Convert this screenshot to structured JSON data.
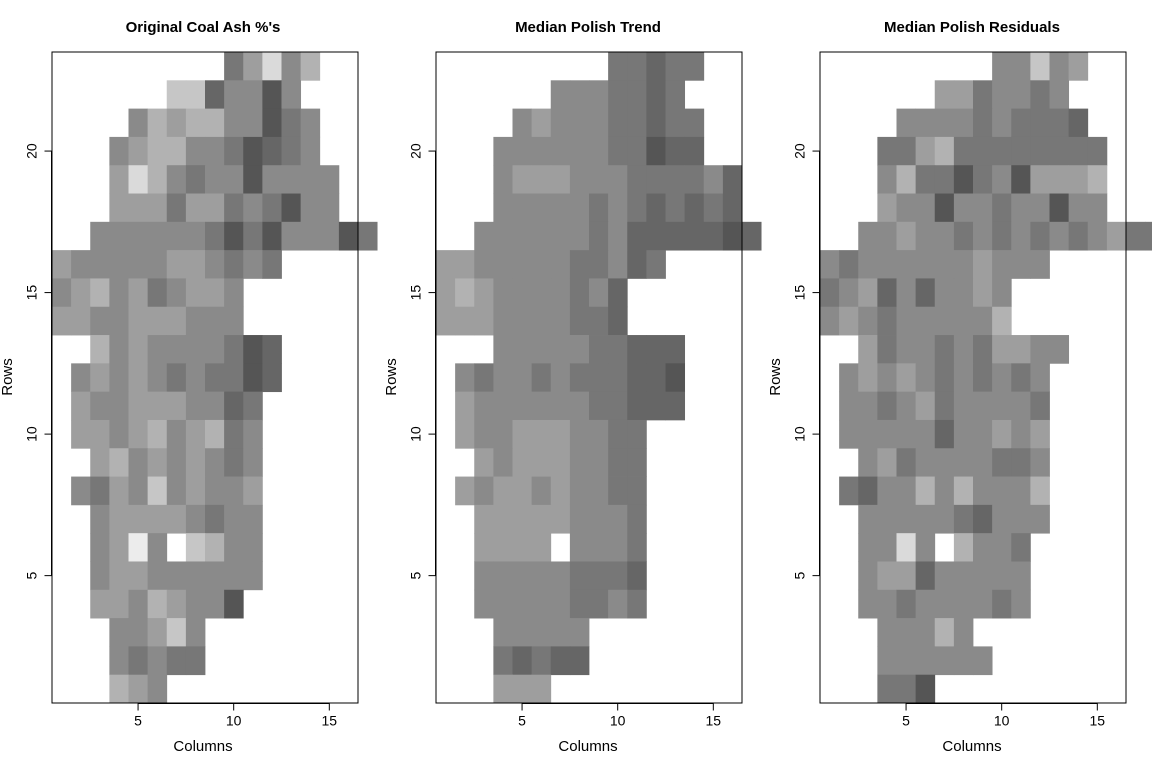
{
  "chart_data": [
    {
      "type": "heatmap",
      "title": "Original Coal Ash %'s",
      "xlabel": "Columns",
      "ylabel": "Rows",
      "xlim": [
        0.5,
        16.5
      ],
      "ylim": [
        0.5,
        23.5
      ],
      "xticks": [
        5,
        10,
        15
      ],
      "yticks": [
        5,
        10,
        15,
        20
      ],
      "color_scale": "grayscale (darker = lower value)",
      "grid": false,
      "rows": [
        {
          "row": 23,
          "start": 10,
          "levels": [
            5,
            7,
            10,
            6,
            8
          ]
        },
        {
          "row": 22,
          "start": 7,
          "levels": [
            9,
            9,
            4,
            6,
            6,
            3,
            6
          ]
        },
        {
          "row": 21,
          "start": 5,
          "levels": [
            6,
            8,
            7,
            8,
            8,
            6,
            6,
            3,
            5,
            6
          ]
        },
        {
          "row": 20,
          "start": 4,
          "levels": [
            6,
            7,
            8,
            8,
            6,
            6,
            5,
            3,
            4,
            5,
            6
          ]
        },
        {
          "row": 19,
          "start": 4,
          "levels": [
            7,
            10,
            8,
            6,
            5,
            6,
            6,
            3,
            6,
            6,
            6,
            6
          ]
        },
        {
          "row": 18,
          "start": 4,
          "levels": [
            7,
            7,
            7,
            5,
            7,
            7,
            5,
            6,
            5,
            3,
            6,
            6
          ]
        },
        {
          "row": 17,
          "start": 3,
          "levels": [
            6,
            6,
            6,
            6,
            6,
            6,
            5,
            3,
            5,
            3,
            6,
            6,
            6,
            3,
            5
          ]
        },
        {
          "row": 16,
          "start": 1,
          "levels": [
            7,
            6,
            6,
            6,
            6,
            6,
            7,
            7,
            6,
            5,
            6,
            5
          ]
        },
        {
          "row": 15,
          "start": 1,
          "levels": [
            6,
            7,
            8,
            6,
            7,
            5,
            6,
            7,
            7,
            6
          ]
        },
        {
          "row": 14,
          "start": 1,
          "levels": [
            7,
            7,
            6,
            6,
            7,
            7,
            7,
            6,
            6,
            6
          ]
        },
        {
          "row": 13,
          "start": 3,
          "levels": [
            8,
            6,
            7,
            6,
            6,
            6,
            6,
            5,
            3,
            4
          ]
        },
        {
          "row": 12,
          "start": 2,
          "levels": [
            6,
            7,
            6,
            7,
            6,
            5,
            6,
            5,
            5,
            3,
            4
          ]
        },
        {
          "row": 11,
          "start": 2,
          "levels": [
            7,
            6,
            6,
            7,
            7,
            7,
            6,
            6,
            4,
            5
          ]
        },
        {
          "row": 10,
          "start": 2,
          "levels": [
            7,
            7,
            6,
            7,
            8,
            6,
            7,
            8,
            5,
            6
          ]
        },
        {
          "row": 9,
          "start": 3,
          "levels": [
            7,
            8,
            6,
            7,
            6,
            7,
            6,
            5,
            6
          ]
        },
        {
          "row": 8,
          "start": 2,
          "levels": [
            6,
            5,
            7,
            6,
            9,
            6,
            7,
            6,
            6,
            7
          ]
        },
        {
          "row": 7,
          "start": 3,
          "levels": [
            6,
            7,
            7,
            7,
            7,
            6,
            5,
            6,
            6
          ]
        },
        {
          "row": 6,
          "start": 3,
          "levels": [
            6,
            7,
            11,
            6,
            null,
            9,
            8,
            6,
            6
          ]
        },
        {
          "row": 5,
          "start": 3,
          "levels": [
            6,
            7,
            7,
            6,
            6,
            6,
            6,
            6,
            6
          ]
        },
        {
          "row": 4,
          "start": 3,
          "levels": [
            7,
            7,
            6,
            8,
            7,
            6,
            6,
            3
          ]
        },
        {
          "row": 3,
          "start": 4,
          "levels": [
            6,
            6,
            7,
            9,
            6
          ]
        },
        {
          "row": 2,
          "start": 4,
          "levels": [
            6,
            5,
            6,
            5,
            5
          ]
        },
        {
          "row": 1,
          "start": 4,
          "levels": [
            8,
            7,
            6
          ]
        }
      ]
    },
    {
      "type": "heatmap",
      "title": "Median Polish Trend",
      "xlabel": "Columns",
      "ylabel": "Rows",
      "xlim": [
        0.5,
        16.5
      ],
      "ylim": [
        0.5,
        23.5
      ],
      "xticks": [
        5,
        10,
        15
      ],
      "yticks": [
        5,
        10,
        15,
        20
      ],
      "color_scale": "grayscale (darker = lower value)",
      "grid": false,
      "rows": [
        {
          "row": 23,
          "start": 10,
          "levels": [
            5,
            5,
            4,
            5,
            5
          ]
        },
        {
          "row": 22,
          "start": 7,
          "levels": [
            6,
            6,
            6,
            5,
            5,
            4,
            5
          ]
        },
        {
          "row": 21,
          "start": 5,
          "levels": [
            6,
            7,
            6,
            6,
            6,
            5,
            5,
            4,
            5,
            5
          ]
        },
        {
          "row": 20,
          "start": 4,
          "levels": [
            6,
            6,
            6,
            6,
            6,
            6,
            5,
            5,
            3,
            4,
            4
          ]
        },
        {
          "row": 19,
          "start": 4,
          "levels": [
            6,
            7,
            7,
            7,
            6,
            6,
            6,
            5,
            5,
            5,
            5,
            6,
            4
          ]
        },
        {
          "row": 18,
          "start": 4,
          "levels": [
            6,
            6,
            6,
            6,
            6,
            5,
            6,
            5,
            4,
            5,
            4,
            5,
            4
          ]
        },
        {
          "row": 17,
          "start": 3,
          "levels": [
            6,
            6,
            6,
            6,
            6,
            6,
            5,
            6,
            4,
            4,
            4,
            4,
            4,
            3,
            4
          ]
        },
        {
          "row": 16,
          "start": 1,
          "levels": [
            7,
            7,
            6,
            6,
            6,
            6,
            6,
            5,
            5,
            6,
            4,
            5
          ]
        },
        {
          "row": 15,
          "start": 1,
          "levels": [
            7,
            8,
            7,
            6,
            6,
            6,
            6,
            5,
            6,
            4
          ]
        },
        {
          "row": 14,
          "start": 1,
          "levels": [
            7,
            7,
            7,
            6,
            6,
            6,
            6,
            5,
            5,
            4
          ]
        },
        {
          "row": 13,
          "start": 4,
          "levels": [
            6,
            6,
            6,
            6,
            6,
            5,
            5,
            4,
            4,
            4
          ]
        },
        {
          "row": 12,
          "start": 2,
          "levels": [
            6,
            5,
            6,
            6,
            5,
            6,
            5,
            5,
            5,
            4,
            4,
            3
          ]
        },
        {
          "row": 11,
          "start": 2,
          "levels": [
            7,
            6,
            6,
            6,
            6,
            6,
            6,
            5,
            5,
            4,
            4,
            4
          ]
        },
        {
          "row": 10,
          "start": 2,
          "levels": [
            7,
            6,
            6,
            7,
            7,
            7,
            6,
            6,
            5,
            5
          ]
        },
        {
          "row": 9,
          "start": 3,
          "levels": [
            7,
            6,
            7,
            7,
            7,
            6,
            6,
            5,
            5
          ]
        },
        {
          "row": 8,
          "start": 2,
          "levels": [
            7,
            6,
            7,
            7,
            6,
            7,
            6,
            6,
            5,
            5
          ]
        },
        {
          "row": 7,
          "start": 3,
          "levels": [
            7,
            7,
            7,
            7,
            7,
            6,
            6,
            6,
            5
          ]
        },
        {
          "row": 6,
          "start": 3,
          "levels": [
            7,
            7,
            7,
            7,
            null,
            6,
            6,
            6,
            5
          ]
        },
        {
          "row": 5,
          "start": 3,
          "levels": [
            6,
            6,
            6,
            6,
            6,
            5,
            5,
            5,
            4
          ]
        },
        {
          "row": 4,
          "start": 3,
          "levels": [
            6,
            6,
            6,
            6,
            6,
            5,
            5,
            6,
            5
          ]
        },
        {
          "row": 3,
          "start": 4,
          "levels": [
            6,
            6,
            6,
            6,
            6
          ]
        },
        {
          "row": 2,
          "start": 4,
          "levels": [
            5,
            4,
            5,
            4,
            4
          ]
        },
        {
          "row": 1,
          "start": 4,
          "levels": [
            7,
            7,
            7
          ]
        }
      ]
    },
    {
      "type": "heatmap",
      "title": "Median Polish Residuals",
      "xlabel": "Columns",
      "ylabel": "Rows",
      "xlim": [
        0.5,
        16.5
      ],
      "ylim": [
        0.5,
        23.5
      ],
      "xticks": [
        5,
        10,
        15
      ],
      "yticks": [
        5,
        10,
        15,
        20
      ],
      "color_scale": "grayscale (darker = lower value)",
      "grid": false,
      "rows": [
        {
          "row": 23,
          "start": 10,
          "levels": [
            6,
            6,
            9,
            6,
            7
          ]
        },
        {
          "row": 22,
          "start": 7,
          "levels": [
            7,
            7,
            5,
            6,
            6,
            5,
            6
          ]
        },
        {
          "row": 21,
          "start": 5,
          "levels": [
            6,
            6,
            6,
            6,
            5,
            6,
            5,
            5,
            5,
            4
          ]
        },
        {
          "row": 20,
          "start": 4,
          "levels": [
            5,
            5,
            7,
            8,
            5,
            5,
            5,
            5,
            5,
            5,
            5,
            5
          ]
        },
        {
          "row": 19,
          "start": 4,
          "levels": [
            6,
            8,
            5,
            5,
            3,
            5,
            6,
            3,
            7,
            7,
            7,
            8
          ]
        },
        {
          "row": 18,
          "start": 4,
          "levels": [
            7,
            6,
            6,
            3,
            6,
            6,
            5,
            6,
            6,
            3,
            6,
            6
          ]
        },
        {
          "row": 17,
          "start": 3,
          "levels": [
            6,
            6,
            7,
            6,
            6,
            5,
            6,
            5,
            6,
            5,
            6,
            5,
            6,
            7,
            5,
            5
          ]
        },
        {
          "row": 16,
          "start": 1,
          "levels": [
            6,
            5,
            6,
            6,
            6,
            6,
            6,
            6,
            7,
            6,
            6,
            6
          ]
        },
        {
          "row": 15,
          "start": 1,
          "levels": [
            5,
            6,
            7,
            4,
            6,
            4,
            6,
            6,
            7,
            6
          ]
        },
        {
          "row": 14,
          "start": 1,
          "levels": [
            6,
            7,
            6,
            5,
            6,
            6,
            6,
            6,
            6,
            8
          ]
        },
        {
          "row": 13,
          "start": 3,
          "levels": [
            7,
            5,
            6,
            6,
            5,
            6,
            5,
            7,
            7,
            6,
            6
          ]
        },
        {
          "row": 12,
          "start": 2,
          "levels": [
            6,
            7,
            6,
            7,
            6,
            5,
            6,
            5,
            6,
            5,
            6
          ]
        },
        {
          "row": 11,
          "start": 2,
          "levels": [
            6,
            6,
            5,
            6,
            7,
            5,
            6,
            6,
            6,
            6,
            5
          ]
        },
        {
          "row": 10,
          "start": 2,
          "levels": [
            6,
            6,
            6,
            6,
            6,
            4,
            6,
            6,
            7,
            6,
            7
          ]
        },
        {
          "row": 9,
          "start": 3,
          "levels": [
            6,
            7,
            5,
            6,
            6,
            6,
            6,
            5,
            5,
            6
          ]
        },
        {
          "row": 8,
          "start": 2,
          "levels": [
            5,
            4,
            6,
            6,
            8,
            6,
            8,
            6,
            6,
            6,
            8
          ]
        },
        {
          "row": 7,
          "start": 3,
          "levels": [
            6,
            6,
            6,
            6,
            6,
            5,
            4,
            6,
            6,
            6
          ]
        },
        {
          "row": 6,
          "start": 3,
          "levels": [
            6,
            6,
            10,
            6,
            null,
            8,
            6,
            6,
            5
          ]
        },
        {
          "row": 5,
          "start": 3,
          "levels": [
            6,
            7,
            7,
            4,
            6,
            6,
            6,
            6,
            6
          ]
        },
        {
          "row": 4,
          "start": 3,
          "levels": [
            6,
            6,
            5,
            6,
            6,
            6,
            6,
            5,
            6
          ]
        },
        {
          "row": 3,
          "start": 4,
          "levels": [
            6,
            6,
            6,
            8,
            6
          ]
        },
        {
          "row": 2,
          "start": 4,
          "levels": [
            6,
            6,
            6,
            6,
            6,
            6
          ]
        },
        {
          "row": 1,
          "start": 4,
          "levels": [
            5,
            5,
            3
          ]
        }
      ]
    }
  ]
}
